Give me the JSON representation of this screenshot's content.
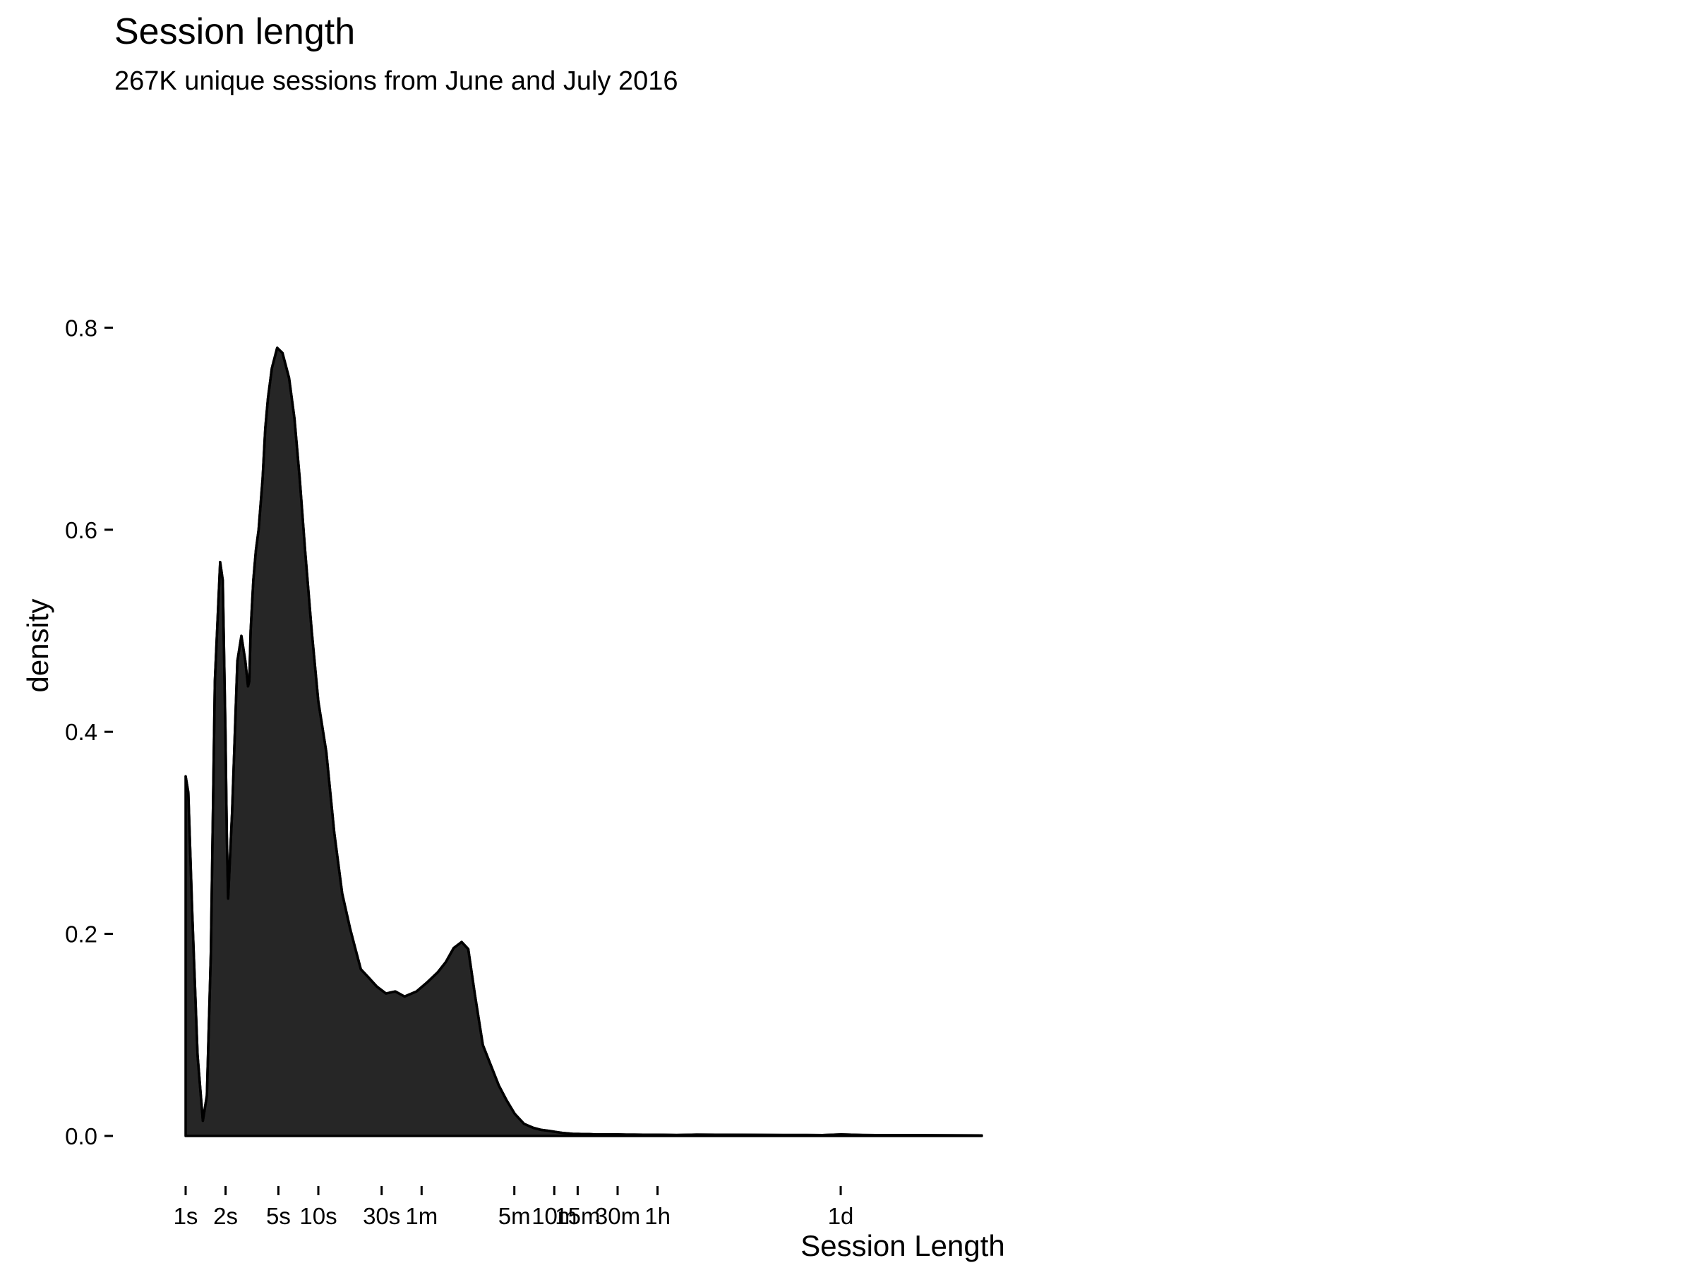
{
  "chart_data": {
    "type": "area",
    "title": "Session length",
    "subtitle": "267K unique sessions from June and July 2016",
    "xlabel": "Session Length",
    "ylabel": "density",
    "x_scale": "log10 seconds",
    "xlim_seconds": [
      1,
      200000
    ],
    "ylim": [
      0,
      0.8
    ],
    "yticks": [
      {
        "value": 0.0,
        "label": "0.0"
      },
      {
        "value": 0.2,
        "label": "0.2"
      },
      {
        "value": 0.4,
        "label": "0.4"
      },
      {
        "value": 0.6,
        "label": "0.6"
      },
      {
        "value": 0.8,
        "label": "0.8"
      }
    ],
    "xticks": [
      {
        "seconds": 1,
        "label": "1s"
      },
      {
        "seconds": 2,
        "label": "2s"
      },
      {
        "seconds": 5,
        "label": "5s"
      },
      {
        "seconds": 10,
        "label": "10s"
      },
      {
        "seconds": 30,
        "label": "30s"
      },
      {
        "seconds": 60,
        "label": "1m"
      },
      {
        "seconds": 300,
        "label": "5m"
      },
      {
        "seconds": 600,
        "label": "10m"
      },
      {
        "seconds": 900,
        "label": "15m"
      },
      {
        "seconds": 1800,
        "label": "30m"
      },
      {
        "seconds": 3600,
        "label": "1h"
      },
      {
        "seconds": 86400,
        "label": "1d"
      }
    ],
    "fill_color": "#262626",
    "line_color": "#000000",
    "series": [
      {
        "name": "density",
        "log10_seconds": [
          0.0,
          0.02,
          0.05,
          0.09,
          0.13,
          0.16,
          0.19,
          0.22,
          0.26,
          0.28,
          0.3,
          0.31,
          0.32,
          0.35,
          0.39,
          0.42,
          0.45,
          0.47,
          0.48,
          0.49,
          0.51,
          0.53,
          0.55,
          0.58,
          0.6,
          0.62,
          0.65,
          0.69,
          0.73,
          0.78,
          0.82,
          0.86,
          0.9,
          0.95,
          1.0,
          1.06,
          1.12,
          1.18,
          1.24,
          1.28,
          1.32,
          1.37,
          1.44,
          1.51,
          1.58,
          1.65,
          1.74,
          1.82,
          1.9,
          1.96,
          2.02,
          2.08,
          2.13,
          2.18,
          2.24,
          2.3,
          2.36,
          2.42,
          2.48,
          2.55,
          2.62,
          2.68,
          2.74,
          2.79,
          2.84,
          2.88,
          2.92,
          2.96,
          3.0,
          3.04,
          3.09,
          3.14,
          3.2,
          3.26,
          3.32,
          3.38,
          3.45,
          3.52,
          3.6,
          3.7,
          3.85,
          4.0,
          4.2,
          4.5,
          4.8,
          4.94,
          5.1,
          5.3,
          5.6,
          5.8,
          6.0
        ],
        "density": [
          0.356,
          0.34,
          0.22,
          0.08,
          0.015,
          0.04,
          0.18,
          0.45,
          0.568,
          0.55,
          0.4,
          0.3,
          0.235,
          0.32,
          0.47,
          0.495,
          0.47,
          0.445,
          0.45,
          0.5,
          0.55,
          0.58,
          0.6,
          0.65,
          0.7,
          0.73,
          0.76,
          0.78,
          0.775,
          0.75,
          0.71,
          0.65,
          0.58,
          0.5,
          0.43,
          0.38,
          0.3,
          0.24,
          0.205,
          0.185,
          0.165,
          0.158,
          0.148,
          0.141,
          0.143,
          0.138,
          0.143,
          0.152,
          0.162,
          0.172,
          0.186,
          0.192,
          0.185,
          0.14,
          0.09,
          0.07,
          0.05,
          0.035,
          0.022,
          0.012,
          0.008,
          0.006,
          0.005,
          0.004,
          0.003,
          0.0025,
          0.002,
          0.002,
          0.0018,
          0.0018,
          0.0015,
          0.0015,
          0.0015,
          0.0015,
          0.0013,
          0.0013,
          0.0012,
          0.0012,
          0.0011,
          0.001,
          0.0013,
          0.0012,
          0.0011,
          0.001,
          0.0009,
          0.0015,
          0.001,
          0.0008,
          0.0007,
          0.0006,
          0.0005
        ]
      }
    ]
  }
}
